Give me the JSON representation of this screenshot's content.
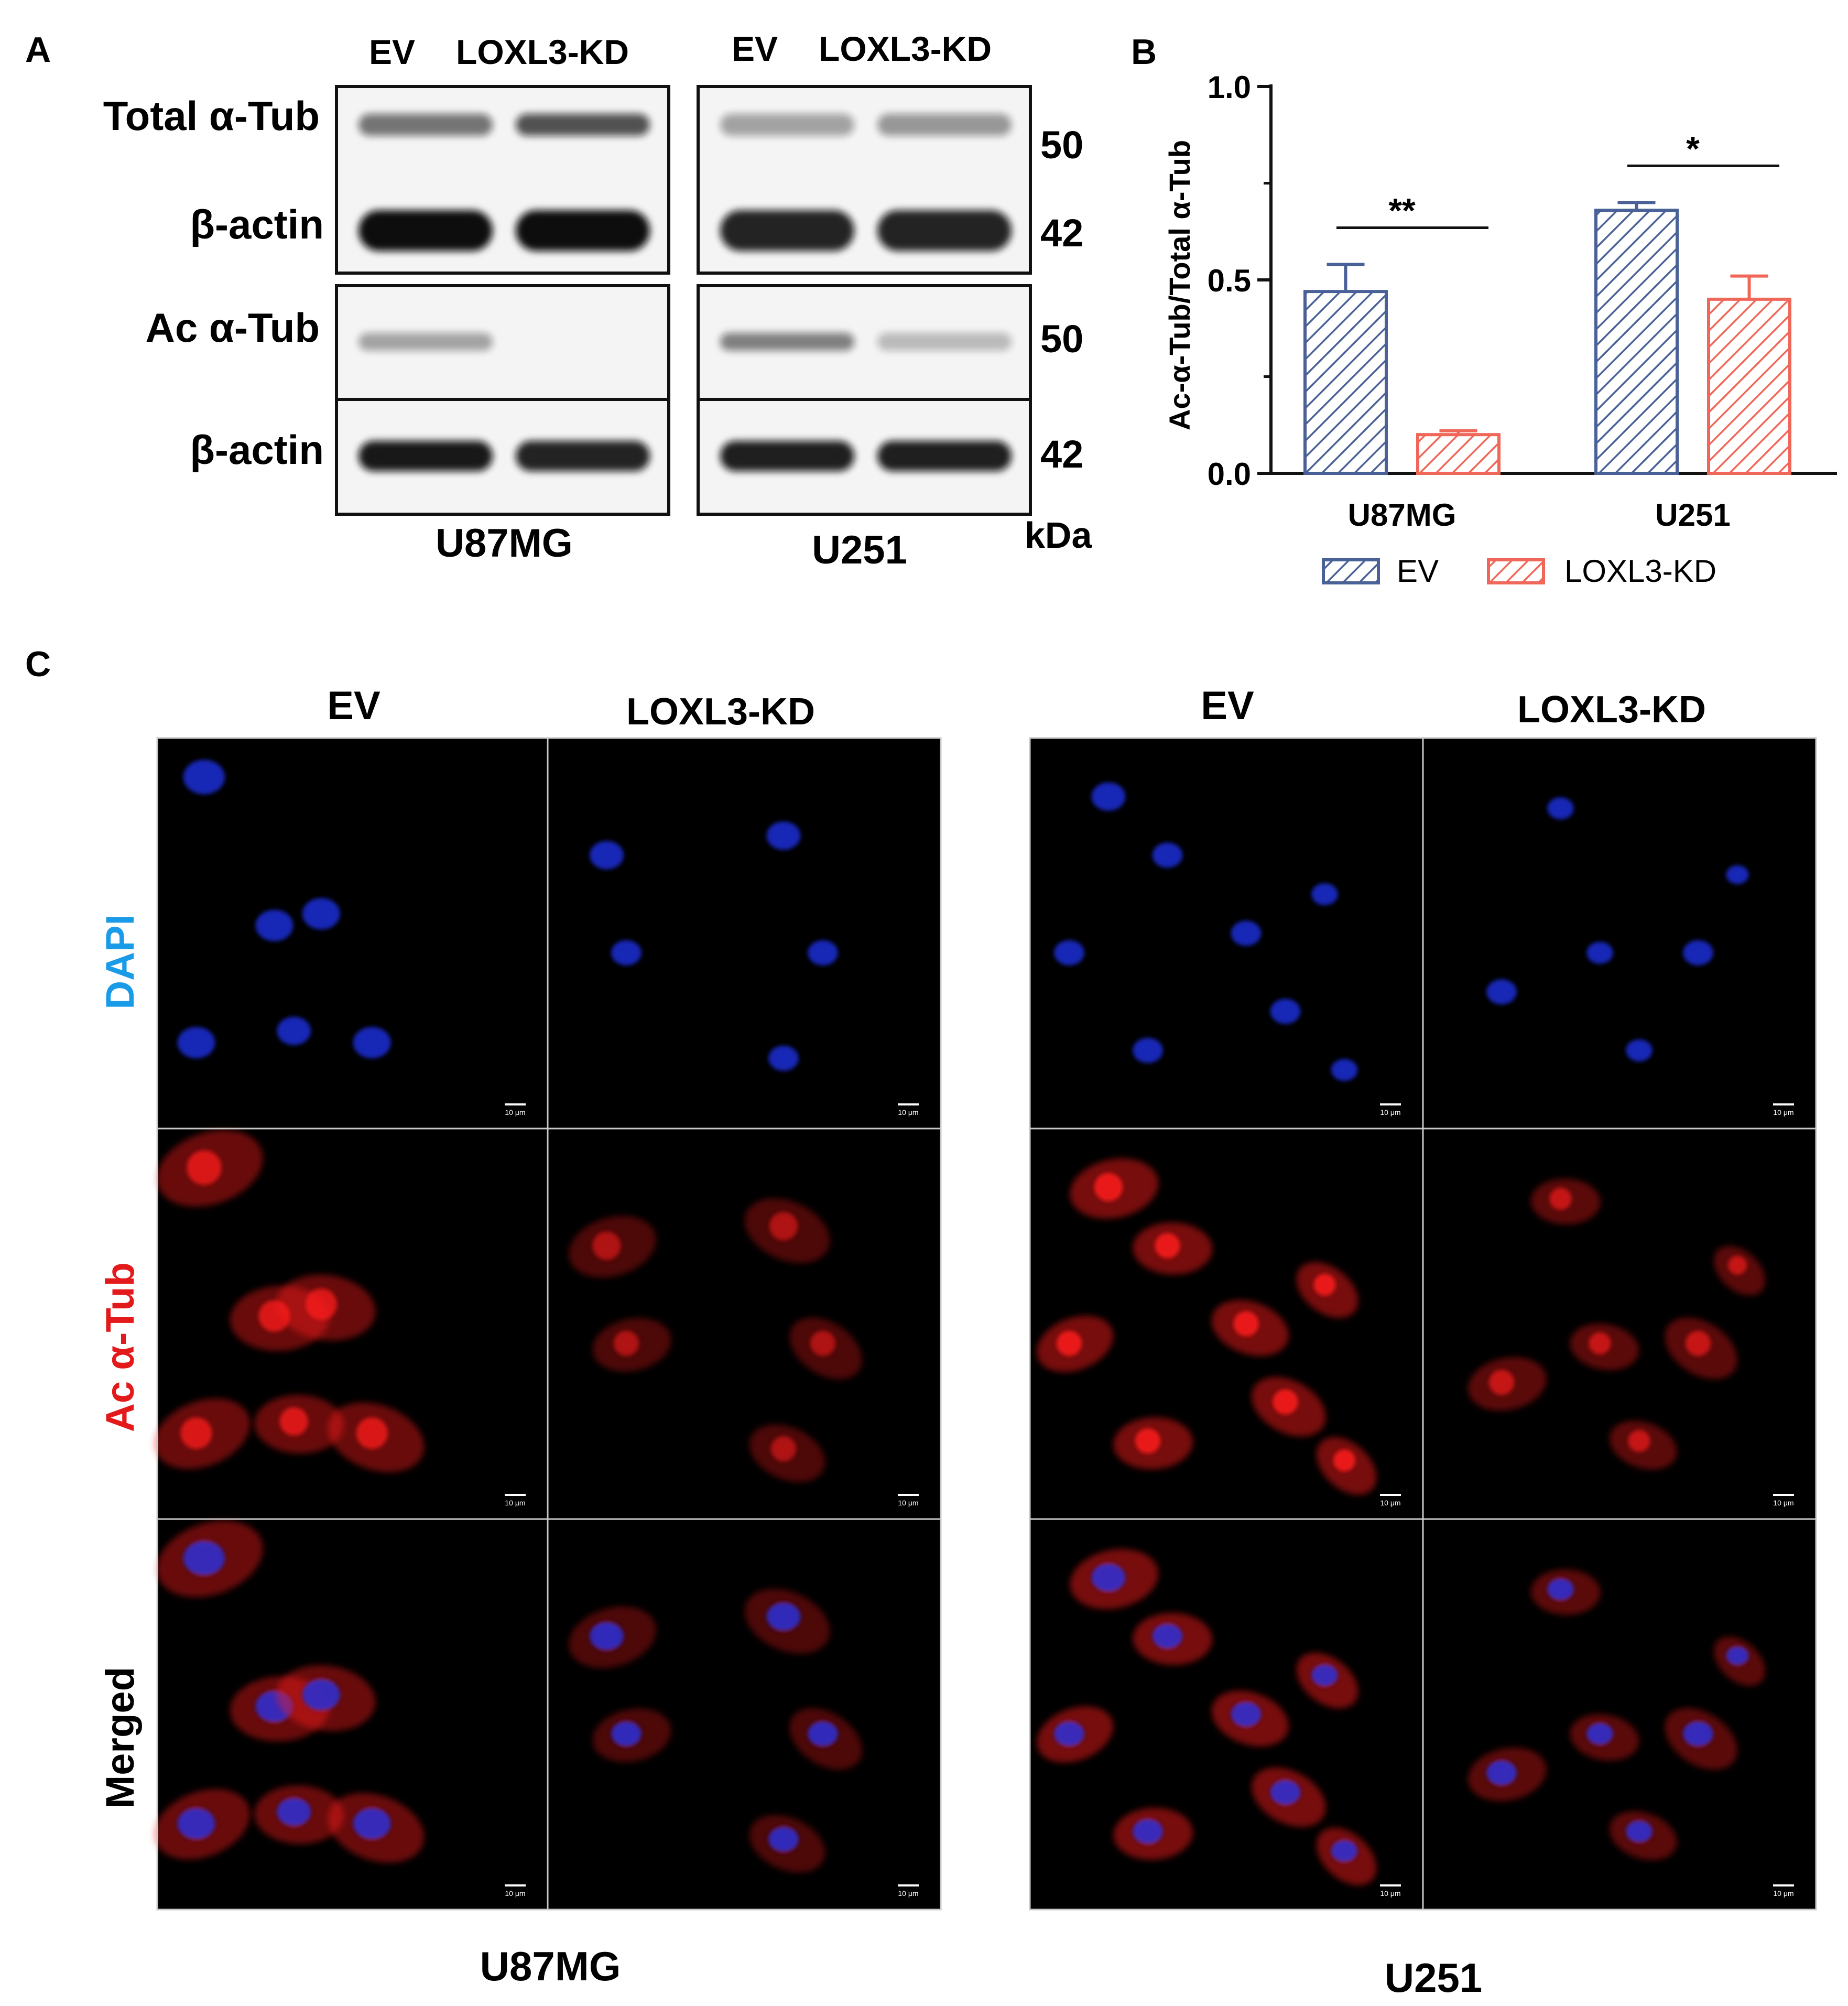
{
  "panelA": {
    "letter": "A",
    "col_ev": "EV",
    "col_kd": "LOXL3-KD",
    "row_total_tub": "Total α-Tub",
    "row_beta_actin": "β-actin",
    "row_ac_tub": "Ac α-Tub",
    "mw_50": "50",
    "mw_42": "42",
    "unit": "kDa",
    "cell_u87": "U87MG",
    "cell_u251": "U251",
    "bands": {
      "u87": {
        "total_tub": [
          0.55,
          0.7
        ],
        "actin_top": [
          1.0,
          1.0
        ],
        "ac_tub": [
          0.35,
          0.02
        ],
        "actin_bottom": [
          0.95,
          0.9
        ]
      },
      "u251": {
        "total_tub": [
          0.35,
          0.4
        ],
        "actin_top": [
          0.9,
          0.9
        ],
        "ac_tub": [
          0.5,
          0.25
        ],
        "actin_bottom": [
          0.92,
          0.92
        ]
      }
    }
  },
  "panelB": {
    "letter": "B",
    "legend_ev": "EV",
    "legend_kd": "LOXL3-KD",
    "sig_u87": "**",
    "sig_u251": "*"
  },
  "chart_data": {
    "type": "bar",
    "categories": [
      "U87MG",
      "U251"
    ],
    "series": [
      {
        "name": "EV",
        "values": [
          0.47,
          0.68
        ],
        "error": [
          0.07,
          0.02
        ],
        "color": "#4a6198"
      },
      {
        "name": "LOXL3-KD",
        "values": [
          0.1,
          0.45
        ],
        "error": [
          0.01,
          0.06
        ],
        "color": "#f0675a"
      }
    ],
    "title": "",
    "xlabel": "",
    "ylabel": "Ac-α-Tub/Total α-Tub",
    "ylim": [
      0,
      1.0
    ],
    "yticks": [
      "0.0",
      "0.5",
      "1.0"
    ],
    "legend_position": "bottom",
    "significance": [
      "**",
      "*"
    ]
  },
  "panelC": {
    "letter": "C",
    "col_ev": "EV",
    "col_kd": "LOXL3-KD",
    "row_dapi": "DAPI",
    "row_ac_tub": "Ac α-Tub",
    "row_merged": "Merged",
    "scale_bar": "10 μm",
    "cell_u87": "U87MG",
    "cell_u251": "U251",
    "colors": {
      "dapi": "#1a9be8",
      "tub": "#e31a1c",
      "nucleus": "#1a2fd6",
      "red_signal": "#ff1a1a"
    }
  }
}
